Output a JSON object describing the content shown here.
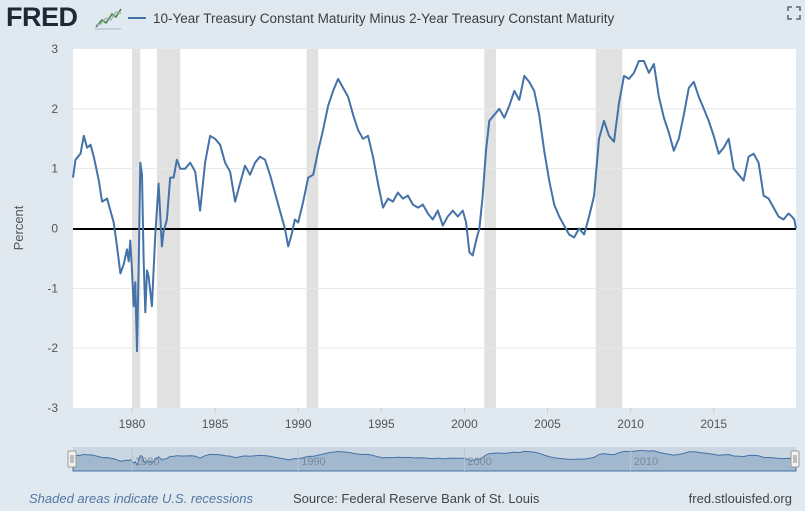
{
  "header": {
    "logo_text": "FRED",
    "series_title": "10-Year Treasury Constant Maturity Minus 2-Year Treasury Constant Maturity",
    "expand_icon": "expand-icon",
    "logo_icon": "line-chart-icon"
  },
  "footer": {
    "recession_note": "Shaded areas indicate U.S. recessions",
    "source": "Source: Federal Reserve Bank of St. Louis",
    "site": "fred.stlouisfed.org"
  },
  "colors": {
    "line": "#4572a7",
    "zero_line": "#000000",
    "recession": "#e1e1e1",
    "background": "#e1e9f0",
    "plot_bg": "#ffffff"
  },
  "chart_data": {
    "type": "line",
    "title": "10-Year Treasury Constant Maturity Minus 2-Year Treasury Constant Maturity",
    "xlabel": "",
    "ylabel": "Percent",
    "xlim": [
      1976.45,
      2019.95
    ],
    "ylim": [
      -3,
      3
    ],
    "y_ticks": [
      3,
      2,
      1,
      0,
      -1,
      -2,
      -3
    ],
    "x_ticks": [
      1980,
      1985,
      1990,
      1995,
      2000,
      2005,
      2010,
      2015
    ],
    "navigator_ticks": [
      1980,
      1990,
      2000,
      2010
    ],
    "grid": "horizontal",
    "zero_line": true,
    "recessions": [
      [
        1980.0,
        1980.5
      ],
      [
        1981.5,
        1982.9
      ],
      [
        1990.5,
        1991.2
      ],
      [
        2001.2,
        2001.9
      ],
      [
        2007.9,
        2009.5
      ]
    ],
    "series": [
      {
        "name": "10-Year Treasury Constant Maturity Minus 2-Year Treasury Constant Maturity",
        "x": [
          1976.45,
          1976.6,
          1976.9,
          1977.1,
          1977.3,
          1977.5,
          1977.7,
          1978.0,
          1978.2,
          1978.5,
          1978.7,
          1978.9,
          1979.1,
          1979.3,
          1979.5,
          1979.7,
          1979.8,
          1979.9,
          1980.0,
          1980.1,
          1980.2,
          1980.3,
          1980.4,
          1980.5,
          1980.6,
          1980.7,
          1980.8,
          1980.9,
          1981.0,
          1981.2,
          1981.4,
          1981.6,
          1981.8,
          1981.9,
          1982.1,
          1982.3,
          1982.5,
          1982.7,
          1982.9,
          1983.2,
          1983.5,
          1983.8,
          1984.1,
          1984.4,
          1984.7,
          1985.0,
          1985.3,
          1985.6,
          1985.9,
          1986.2,
          1986.5,
          1986.8,
          1987.1,
          1987.4,
          1987.7,
          1988.0,
          1988.3,
          1988.6,
          1988.9,
          1989.2,
          1989.4,
          1989.6,
          1989.8,
          1990.0,
          1990.3,
          1990.6,
          1990.9,
          1991.2,
          1991.5,
          1991.8,
          1992.1,
          1992.4,
          1992.7,
          1993.0,
          1993.3,
          1993.6,
          1993.9,
          1994.2,
          1994.5,
          1994.8,
          1995.1,
          1995.4,
          1995.7,
          1996.0,
          1996.3,
          1996.6,
          1996.9,
          1997.2,
          1997.5,
          1997.8,
          1998.1,
          1998.4,
          1998.7,
          1999.0,
          1999.3,
          1999.6,
          1999.9,
          2000.1,
          2000.3,
          2000.5,
          2000.7,
          2000.9,
          2001.1,
          2001.3,
          2001.5,
          2001.8,
          2002.1,
          2002.4,
          2002.7,
          2003.0,
          2003.3,
          2003.6,
          2003.9,
          2004.2,
          2004.5,
          2004.8,
          2005.1,
          2005.4,
          2005.7,
          2006.0,
          2006.3,
          2006.6,
          2006.9,
          2007.2,
          2007.5,
          2007.8,
          2008.1,
          2008.4,
          2008.7,
          2009.0,
          2009.3,
          2009.6,
          2009.9,
          2010.2,
          2010.5,
          2010.8,
          2011.1,
          2011.4,
          2011.7,
          2012.0,
          2012.3,
          2012.6,
          2012.9,
          2013.2,
          2013.5,
          2013.8,
          2014.1,
          2014.4,
          2014.7,
          2015.0,
          2015.3,
          2015.6,
          2015.9,
          2016.2,
          2016.5,
          2016.8,
          2017.1,
          2017.4,
          2017.7,
          2018.0,
          2018.3,
          2018.6,
          2018.9,
          2019.2,
          2019.5,
          2019.7,
          2019.85,
          2019.95
        ],
        "values": [
          0.85,
          1.15,
          1.25,
          1.55,
          1.35,
          1.4,
          1.2,
          0.8,
          0.45,
          0.5,
          0.3,
          0.1,
          -0.3,
          -0.75,
          -0.6,
          -0.35,
          -0.55,
          -0.2,
          -0.7,
          -1.3,
          -0.9,
          -2.05,
          -0.6,
          1.1,
          0.9,
          -0.5,
          -1.4,
          -0.7,
          -0.8,
          -1.3,
          -0.1,
          0.75,
          -0.3,
          -0.05,
          0.15,
          0.85,
          0.85,
          1.15,
          1.0,
          1.0,
          1.1,
          0.95,
          0.3,
          1.1,
          1.55,
          1.5,
          1.4,
          1.1,
          0.95,
          0.45,
          0.75,
          1.05,
          0.9,
          1.1,
          1.2,
          1.15,
          0.9,
          0.6,
          0.3,
          0.0,
          -0.3,
          -0.1,
          0.15,
          0.1,
          0.45,
          0.85,
          0.9,
          1.3,
          1.65,
          2.05,
          2.3,
          2.5,
          2.35,
          2.2,
          1.9,
          1.65,
          1.5,
          1.55,
          1.2,
          0.75,
          0.35,
          0.5,
          0.45,
          0.6,
          0.5,
          0.55,
          0.4,
          0.35,
          0.4,
          0.25,
          0.15,
          0.3,
          0.05,
          0.2,
          0.3,
          0.2,
          0.3,
          0.1,
          -0.4,
          -0.45,
          -0.2,
          0.0,
          0.55,
          1.3,
          1.8,
          1.9,
          2.0,
          1.85,
          2.05,
          2.3,
          2.15,
          2.55,
          2.45,
          2.3,
          1.9,
          1.3,
          0.8,
          0.4,
          0.2,
          0.05,
          -0.1,
          -0.15,
          0.0,
          -0.1,
          0.2,
          0.55,
          1.5,
          1.8,
          1.55,
          1.45,
          2.1,
          2.55,
          2.5,
          2.6,
          2.8,
          2.8,
          2.6,
          2.75,
          2.2,
          1.85,
          1.6,
          1.3,
          1.5,
          1.9,
          2.35,
          2.45,
          2.2,
          2.0,
          1.8,
          1.55,
          1.25,
          1.35,
          1.5,
          1.0,
          0.9,
          0.8,
          1.2,
          1.25,
          1.1,
          0.55,
          0.5,
          0.35,
          0.2,
          0.15,
          0.25,
          0.2,
          0.15,
          0.0
        ]
      }
    ]
  }
}
